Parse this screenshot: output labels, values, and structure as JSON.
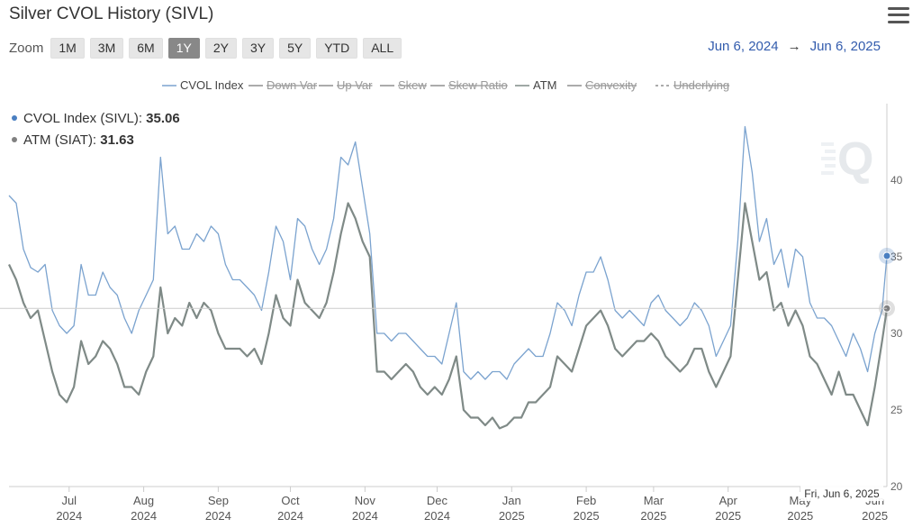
{
  "header": {
    "title": "Silver CVOL History (SIVL)"
  },
  "zoom": {
    "label": "Zoom",
    "buttons": [
      "1M",
      "3M",
      "6M",
      "1Y",
      "2Y",
      "3Y",
      "5Y",
      "YTD",
      "ALL"
    ],
    "active": "1Y"
  },
  "range": {
    "from": "Jun 6, 2024",
    "arrow": "→",
    "to": "Jun 6, 2025"
  },
  "tooltip": {
    "cvol_label": "CVOL Index (SIVL): ",
    "cvol_value": "35.06",
    "atm_label": "ATM (SIAT): ",
    "atm_value": "31.63",
    "date": "Fri, Jun 6, 2025"
  },
  "colors": {
    "cvol": "#7ba3cf",
    "atm": "#7f8a87",
    "legend_inactive": "#9a9a9a",
    "marker_cvol": "#4a7fc1",
    "marker_atm": "#808080"
  },
  "icons": {
    "menu": "hamburger-menu-icon",
    "watermark": "q-logo-watermark"
  },
  "chart_data": {
    "type": "line",
    "title": "Silver CVOL History (SIVL)",
    "x_start": "2024-06-06",
    "x_end": "2025-06-06",
    "xlim": [
      "2024-06-06",
      "2025-06-06"
    ],
    "ylim": [
      20,
      45
    ],
    "y_ticks": [
      20,
      25,
      30,
      35,
      40
    ],
    "x_ticks": [
      {
        "date": "2024-07-01",
        "month": "Jul",
        "year": "2024"
      },
      {
        "date": "2024-08-01",
        "month": "Aug",
        "year": "2024"
      },
      {
        "date": "2024-09-01",
        "month": "Sep",
        "year": "2024"
      },
      {
        "date": "2024-10-01",
        "month": "Oct",
        "year": "2024"
      },
      {
        "date": "2024-11-01",
        "month": "Nov",
        "year": "2024"
      },
      {
        "date": "2024-12-01",
        "month": "Dec",
        "year": "2024"
      },
      {
        "date": "2025-01-01",
        "month": "Jan",
        "year": "2025"
      },
      {
        "date": "2025-02-01",
        "month": "Feb",
        "year": "2025"
      },
      {
        "date": "2025-03-01",
        "month": "Mar",
        "year": "2025"
      },
      {
        "date": "2025-04-01",
        "month": "Apr",
        "year": "2025"
      },
      {
        "date": "2025-05-01",
        "month": "May",
        "year": "2025"
      },
      {
        "date": "2025-06-01",
        "month": "Jun",
        "year": "2025"
      }
    ],
    "grid": false,
    "legend_position": "top-center",
    "legend": [
      {
        "name": "CVOL Index",
        "active": true
      },
      {
        "name": "Down Var",
        "active": false
      },
      {
        "name": "Up Var",
        "active": false
      },
      {
        "name": "Skew",
        "active": false
      },
      {
        "name": "Skew Ratio",
        "active": false
      },
      {
        "name": "ATM",
        "active": true
      },
      {
        "name": "Convexity",
        "active": false
      },
      {
        "name": "Underlying",
        "active": false
      }
    ],
    "crosshair_y": 31.63,
    "series": [
      {
        "name": "CVOL Index",
        "points": [
          [
            "2024-06-06",
            39.0
          ],
          [
            "2024-06-09",
            38.5
          ],
          [
            "2024-06-12",
            35.5
          ],
          [
            "2024-06-15",
            34.3
          ],
          [
            "2024-06-18",
            34.0
          ],
          [
            "2024-06-21",
            34.5
          ],
          [
            "2024-06-24",
            31.5
          ],
          [
            "2024-06-27",
            30.5
          ],
          [
            "2024-06-30",
            30.0
          ],
          [
            "2024-07-03",
            30.5
          ],
          [
            "2024-07-06",
            34.5
          ],
          [
            "2024-07-09",
            32.5
          ],
          [
            "2024-07-12",
            32.5
          ],
          [
            "2024-07-15",
            34.0
          ],
          [
            "2024-07-18",
            33.0
          ],
          [
            "2024-07-21",
            32.5
          ],
          [
            "2024-07-24",
            31.0
          ],
          [
            "2024-07-27",
            30.0
          ],
          [
            "2024-07-30",
            31.5
          ],
          [
            "2024-08-02",
            32.5
          ],
          [
            "2024-08-05",
            33.5
          ],
          [
            "2024-08-08",
            41.5
          ],
          [
            "2024-08-11",
            36.5
          ],
          [
            "2024-08-14",
            37.0
          ],
          [
            "2024-08-17",
            35.5
          ],
          [
            "2024-08-20",
            35.5
          ],
          [
            "2024-08-23",
            36.5
          ],
          [
            "2024-08-26",
            36.0
          ],
          [
            "2024-08-29",
            37.0
          ],
          [
            "2024-09-01",
            36.5
          ],
          [
            "2024-09-04",
            34.5
          ],
          [
            "2024-09-07",
            33.5
          ],
          [
            "2024-09-10",
            33.5
          ],
          [
            "2024-09-13",
            33.0
          ],
          [
            "2024-09-16",
            32.5
          ],
          [
            "2024-09-19",
            31.5
          ],
          [
            "2024-09-22",
            34.0
          ],
          [
            "2024-09-25",
            37.0
          ],
          [
            "2024-09-28",
            36.0
          ],
          [
            "2024-10-01",
            33.5
          ],
          [
            "2024-10-04",
            37.5
          ],
          [
            "2024-10-07",
            37.0
          ],
          [
            "2024-10-10",
            35.5
          ],
          [
            "2024-10-13",
            34.5
          ],
          [
            "2024-10-16",
            35.5
          ],
          [
            "2024-10-19",
            37.5
          ],
          [
            "2024-10-22",
            41.5
          ],
          [
            "2024-10-25",
            41.0
          ],
          [
            "2024-10-28",
            42.5
          ],
          [
            "2024-10-31",
            39.5
          ],
          [
            "2024-11-03",
            36.5
          ],
          [
            "2024-11-06",
            30.0
          ],
          [
            "2024-11-09",
            30.0
          ],
          [
            "2024-11-12",
            29.5
          ],
          [
            "2024-11-15",
            30.0
          ],
          [
            "2024-11-18",
            30.0
          ],
          [
            "2024-11-21",
            29.5
          ],
          [
            "2024-11-24",
            29.0
          ],
          [
            "2024-11-27",
            28.5
          ],
          [
            "2024-11-30",
            28.5
          ],
          [
            "2024-12-03",
            28.0
          ],
          [
            "2024-12-06",
            30.0
          ],
          [
            "2024-12-09",
            32.0
          ],
          [
            "2024-12-12",
            27.5
          ],
          [
            "2024-12-15",
            27.0
          ],
          [
            "2024-12-18",
            27.5
          ],
          [
            "2024-12-21",
            27.0
          ],
          [
            "2024-12-24",
            27.5
          ],
          [
            "2024-12-27",
            27.5
          ],
          [
            "2024-12-30",
            27.0
          ],
          [
            "2025-01-02",
            28.0
          ],
          [
            "2025-01-05",
            28.5
          ],
          [
            "2025-01-08",
            29.0
          ],
          [
            "2025-01-11",
            28.5
          ],
          [
            "2025-01-14",
            28.5
          ],
          [
            "2025-01-17",
            30.0
          ],
          [
            "2025-01-20",
            32.0
          ],
          [
            "2025-01-23",
            31.5
          ],
          [
            "2025-01-26",
            30.5
          ],
          [
            "2025-01-29",
            32.5
          ],
          [
            "2025-02-01",
            34.0
          ],
          [
            "2025-02-04",
            34.0
          ],
          [
            "2025-02-07",
            35.0
          ],
          [
            "2025-02-10",
            33.5
          ],
          [
            "2025-02-13",
            31.5
          ],
          [
            "2025-02-16",
            31.0
          ],
          [
            "2025-02-19",
            31.5
          ],
          [
            "2025-02-22",
            31.0
          ],
          [
            "2025-02-25",
            30.5
          ],
          [
            "2025-02-28",
            32.0
          ],
          [
            "2025-03-03",
            32.5
          ],
          [
            "2025-03-06",
            31.5
          ],
          [
            "2025-03-09",
            31.0
          ],
          [
            "2025-03-12",
            30.5
          ],
          [
            "2025-03-15",
            31.0
          ],
          [
            "2025-03-18",
            32.0
          ],
          [
            "2025-03-21",
            31.5
          ],
          [
            "2025-03-24",
            30.5
          ],
          [
            "2025-03-27",
            28.5
          ],
          [
            "2025-03-30",
            29.5
          ],
          [
            "2025-04-02",
            30.5
          ],
          [
            "2025-04-05",
            36.0
          ],
          [
            "2025-04-08",
            43.5
          ],
          [
            "2025-04-11",
            40.5
          ],
          [
            "2025-04-14",
            36.0
          ],
          [
            "2025-04-17",
            37.5
          ],
          [
            "2025-04-20",
            34.5
          ],
          [
            "2025-04-23",
            35.5
          ],
          [
            "2025-04-26",
            33.0
          ],
          [
            "2025-04-29",
            35.5
          ],
          [
            "2025-05-02",
            35.0
          ],
          [
            "2025-05-05",
            32.0
          ],
          [
            "2025-05-08",
            31.0
          ],
          [
            "2025-05-11",
            31.0
          ],
          [
            "2025-05-14",
            30.5
          ],
          [
            "2025-05-17",
            29.5
          ],
          [
            "2025-05-20",
            28.5
          ],
          [
            "2025-05-23",
            30.0
          ],
          [
            "2025-05-26",
            29.0
          ],
          [
            "2025-05-29",
            27.5
          ],
          [
            "2025-06-01",
            30.0
          ],
          [
            "2025-06-04",
            31.5
          ],
          [
            "2025-06-06",
            35.06
          ]
        ]
      },
      {
        "name": "ATM",
        "points": [
          [
            "2024-06-06",
            34.5
          ],
          [
            "2024-06-09",
            33.5
          ],
          [
            "2024-06-12",
            32.0
          ],
          [
            "2024-06-15",
            31.0
          ],
          [
            "2024-06-18",
            31.5
          ],
          [
            "2024-06-21",
            29.5
          ],
          [
            "2024-06-24",
            27.5
          ],
          [
            "2024-06-27",
            26.0
          ],
          [
            "2024-06-30",
            25.5
          ],
          [
            "2024-07-03",
            26.5
          ],
          [
            "2024-07-06",
            29.5
          ],
          [
            "2024-07-09",
            28.0
          ],
          [
            "2024-07-12",
            28.5
          ],
          [
            "2024-07-15",
            29.5
          ],
          [
            "2024-07-18",
            29.0
          ],
          [
            "2024-07-21",
            28.0
          ],
          [
            "2024-07-24",
            26.5
          ],
          [
            "2024-07-27",
            26.5
          ],
          [
            "2024-07-30",
            26.0
          ],
          [
            "2024-08-02",
            27.5
          ],
          [
            "2024-08-05",
            28.5
          ],
          [
            "2024-08-08",
            33.0
          ],
          [
            "2024-08-11",
            30.0
          ],
          [
            "2024-08-14",
            31.0
          ],
          [
            "2024-08-17",
            30.5
          ],
          [
            "2024-08-20",
            32.0
          ],
          [
            "2024-08-23",
            31.0
          ],
          [
            "2024-08-26",
            32.0
          ],
          [
            "2024-08-29",
            31.5
          ],
          [
            "2024-09-01",
            30.0
          ],
          [
            "2024-09-04",
            29.0
          ],
          [
            "2024-09-07",
            29.0
          ],
          [
            "2024-09-10",
            29.0
          ],
          [
            "2024-09-13",
            28.5
          ],
          [
            "2024-09-16",
            29.0
          ],
          [
            "2024-09-19",
            28.0
          ],
          [
            "2024-09-22",
            30.0
          ],
          [
            "2024-09-25",
            32.5
          ],
          [
            "2024-09-28",
            31.0
          ],
          [
            "2024-10-01",
            30.5
          ],
          [
            "2024-10-04",
            33.5
          ],
          [
            "2024-10-07",
            32.0
          ],
          [
            "2024-10-10",
            31.5
          ],
          [
            "2024-10-13",
            31.0
          ],
          [
            "2024-10-16",
            32.0
          ],
          [
            "2024-10-19",
            34.0
          ],
          [
            "2024-10-22",
            36.5
          ],
          [
            "2024-10-25",
            38.5
          ],
          [
            "2024-10-28",
            37.5
          ],
          [
            "2024-10-31",
            36.0
          ],
          [
            "2024-11-03",
            35.0
          ],
          [
            "2024-11-06",
            27.5
          ],
          [
            "2024-11-09",
            27.5
          ],
          [
            "2024-11-12",
            27.0
          ],
          [
            "2024-11-15",
            27.5
          ],
          [
            "2024-11-18",
            28.0
          ],
          [
            "2024-11-21",
            27.5
          ],
          [
            "2024-11-24",
            26.5
          ],
          [
            "2024-11-27",
            26.0
          ],
          [
            "2024-11-30",
            26.5
          ],
          [
            "2024-12-03",
            26.0
          ],
          [
            "2024-12-06",
            27.0
          ],
          [
            "2024-12-09",
            28.5
          ],
          [
            "2024-12-12",
            25.0
          ],
          [
            "2024-12-15",
            24.5
          ],
          [
            "2024-12-18",
            24.5
          ],
          [
            "2024-12-21",
            24.0
          ],
          [
            "2024-12-24",
            24.5
          ],
          [
            "2024-12-27",
            23.8
          ],
          [
            "2024-12-30",
            24.0
          ],
          [
            "2025-01-02",
            24.5
          ],
          [
            "2025-01-05",
            24.5
          ],
          [
            "2025-01-08",
            25.5
          ],
          [
            "2025-01-11",
            25.5
          ],
          [
            "2025-01-14",
            26.0
          ],
          [
            "2025-01-17",
            26.5
          ],
          [
            "2025-01-20",
            28.5
          ],
          [
            "2025-01-23",
            28.0
          ],
          [
            "2025-01-26",
            27.5
          ],
          [
            "2025-01-29",
            29.0
          ],
          [
            "2025-02-01",
            30.5
          ],
          [
            "2025-02-04",
            31.0
          ],
          [
            "2025-02-07",
            31.5
          ],
          [
            "2025-02-10",
            30.5
          ],
          [
            "2025-02-13",
            29.0
          ],
          [
            "2025-02-16",
            28.5
          ],
          [
            "2025-02-19",
            29.0
          ],
          [
            "2025-02-22",
            29.5
          ],
          [
            "2025-02-25",
            29.5
          ],
          [
            "2025-02-28",
            30.0
          ],
          [
            "2025-03-03",
            29.5
          ],
          [
            "2025-03-06",
            28.5
          ],
          [
            "2025-03-09",
            28.0
          ],
          [
            "2025-03-12",
            27.5
          ],
          [
            "2025-03-15",
            28.0
          ],
          [
            "2025-03-18",
            29.0
          ],
          [
            "2025-03-21",
            29.0
          ],
          [
            "2025-03-24",
            27.5
          ],
          [
            "2025-03-27",
            26.5
          ],
          [
            "2025-03-30",
            27.5
          ],
          [
            "2025-04-02",
            28.5
          ],
          [
            "2025-04-05",
            33.5
          ],
          [
            "2025-04-08",
            38.5
          ],
          [
            "2025-04-11",
            36.0
          ],
          [
            "2025-04-14",
            33.5
          ],
          [
            "2025-04-17",
            34.0
          ],
          [
            "2025-04-20",
            31.5
          ],
          [
            "2025-04-23",
            32.0
          ],
          [
            "2025-04-26",
            30.5
          ],
          [
            "2025-04-29",
            31.5
          ],
          [
            "2025-05-02",
            30.5
          ],
          [
            "2025-05-05",
            28.5
          ],
          [
            "2025-05-08",
            28.0
          ],
          [
            "2025-05-11",
            27.0
          ],
          [
            "2025-05-14",
            26.0
          ],
          [
            "2025-05-17",
            27.5
          ],
          [
            "2025-05-20",
            26.0
          ],
          [
            "2025-05-23",
            26.0
          ],
          [
            "2025-05-26",
            25.0
          ],
          [
            "2025-05-29",
            24.0
          ],
          [
            "2025-06-01",
            26.5
          ],
          [
            "2025-06-04",
            29.5
          ],
          [
            "2025-06-06",
            31.63
          ]
        ]
      }
    ]
  }
}
